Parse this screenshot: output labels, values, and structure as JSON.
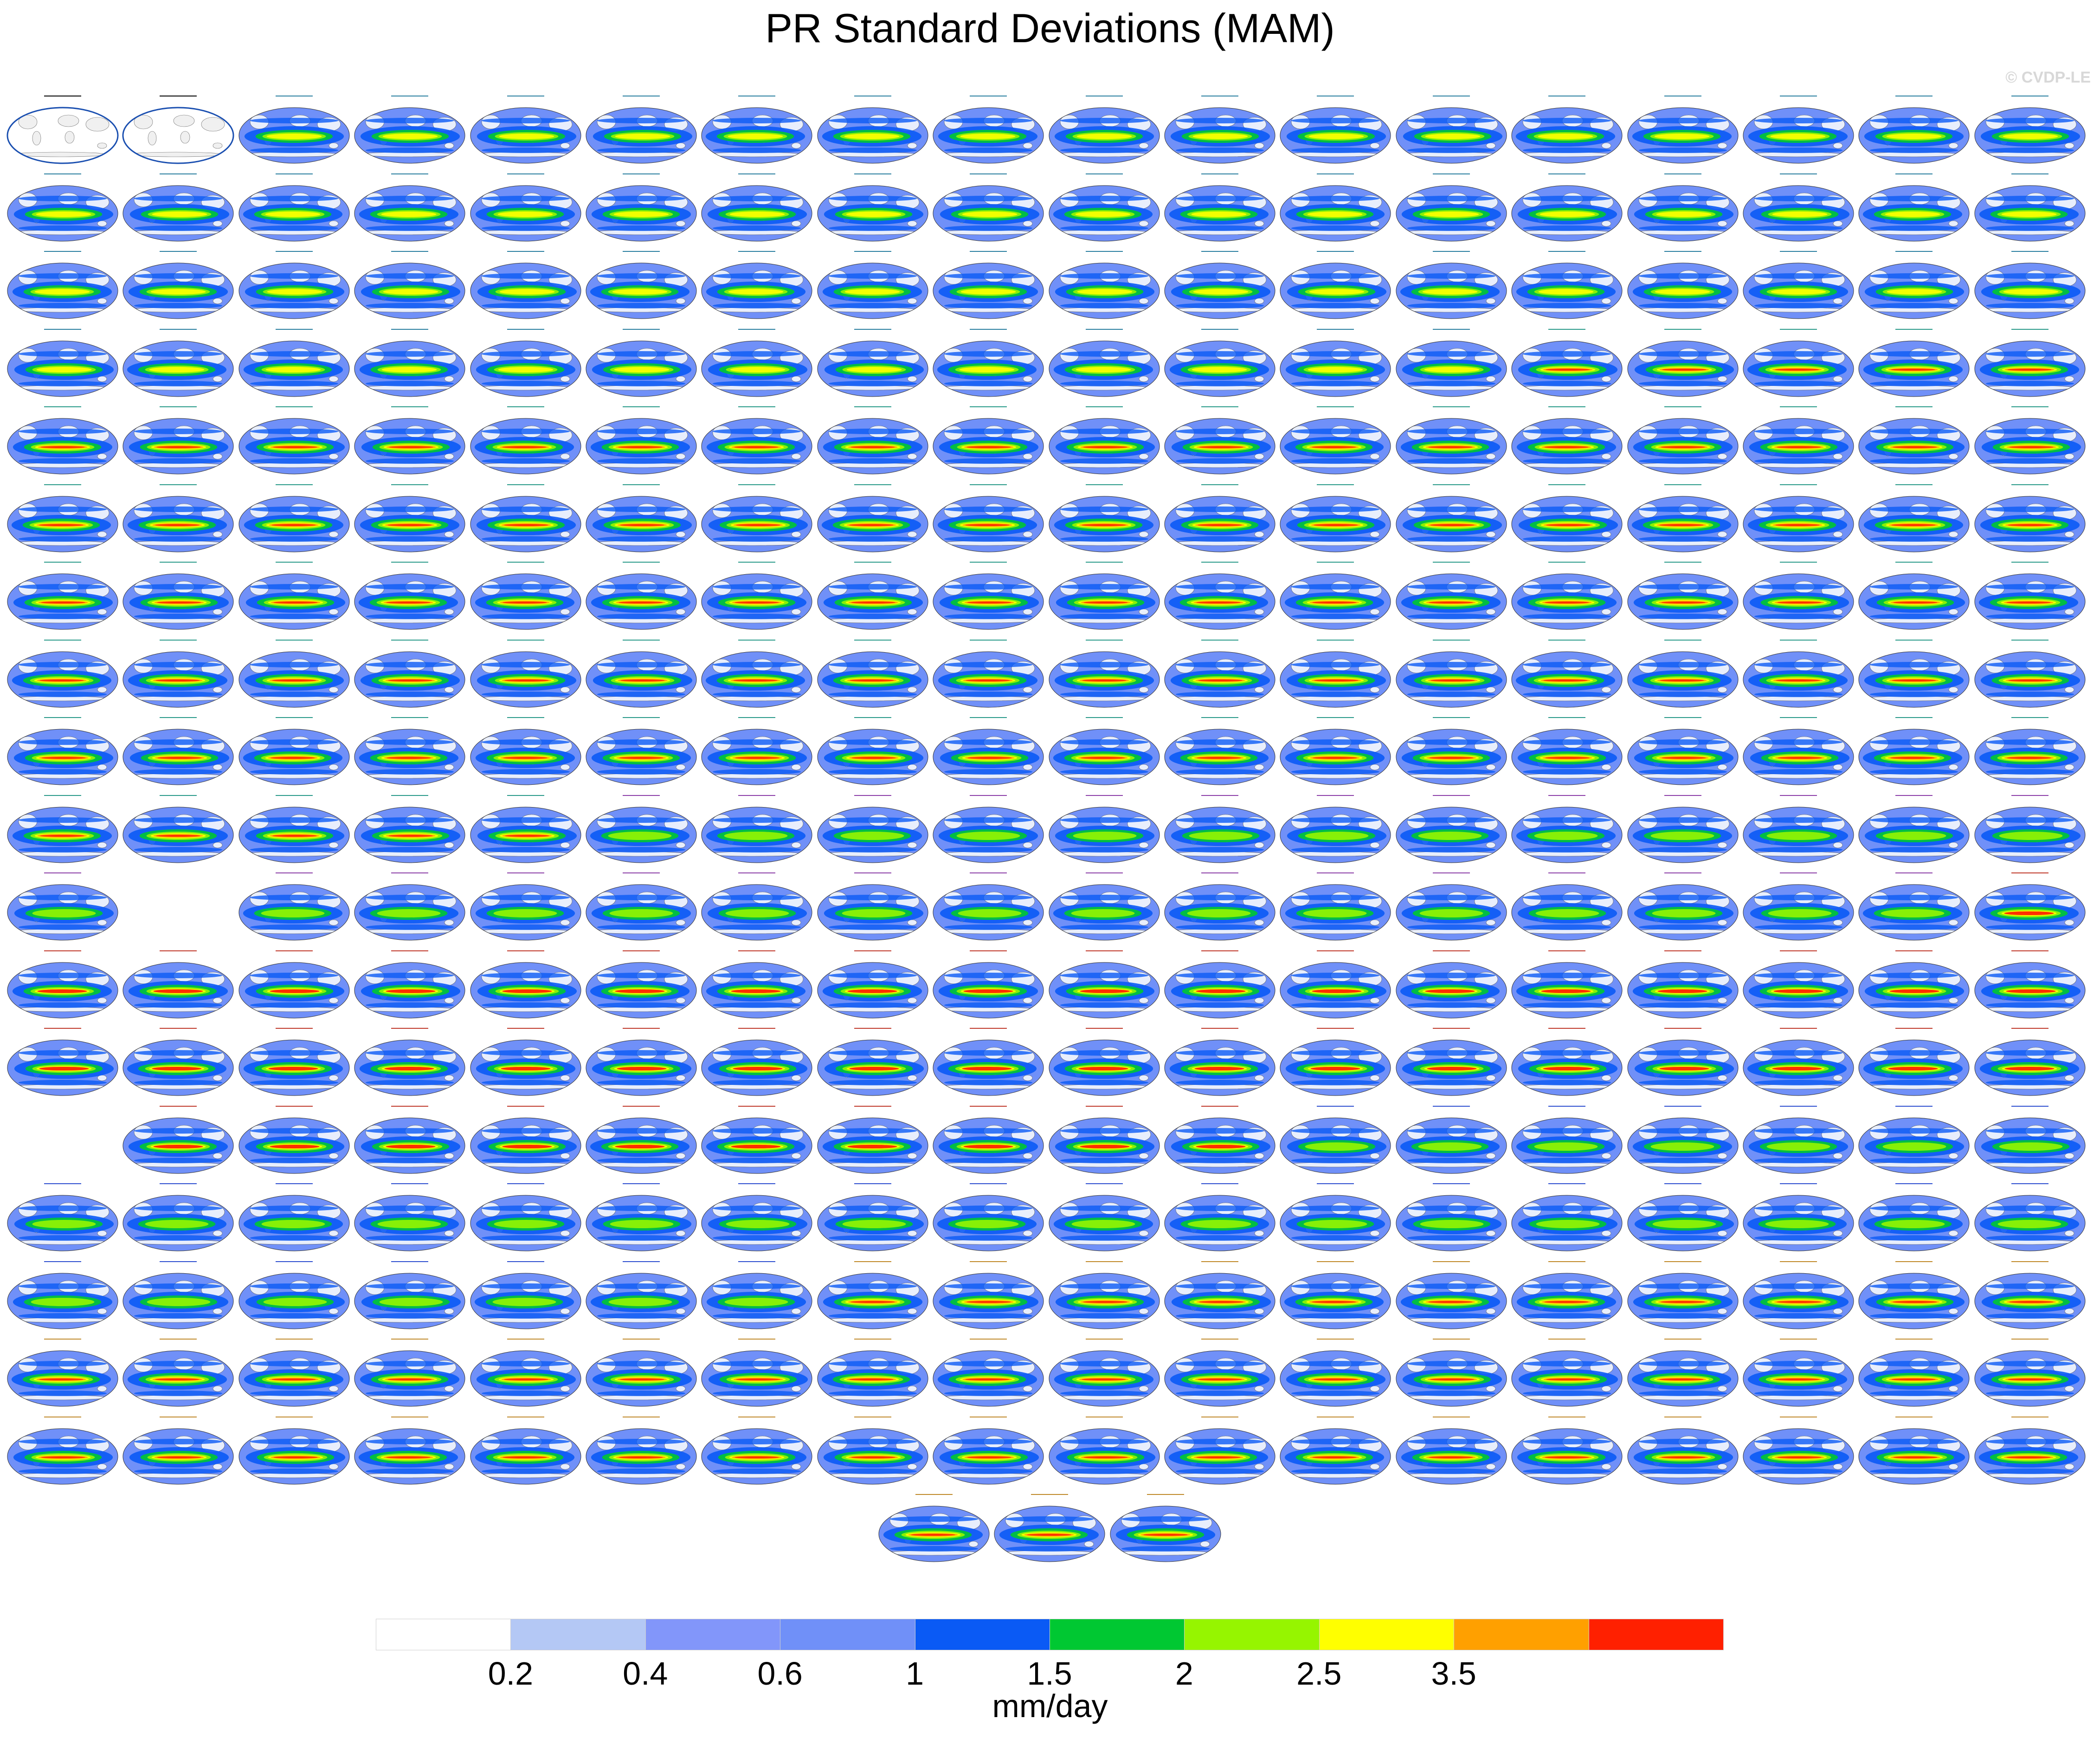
{
  "figure": {
    "title": "PR Standard Deviations (MAM)",
    "credit": "© CVDP-LE",
    "units": "mm/day"
  },
  "colorbar": {
    "colors": [
      "#ffffff",
      "#b4c8f5",
      "#8296fa",
      "#7090f8",
      "#0a5af5",
      "#00c832",
      "#96f500",
      "#ffff00",
      "#ffa000",
      "#ff2000"
    ],
    "labels": [
      "0.2",
      "0.4",
      "0.6",
      "1",
      "1.5",
      "2",
      "2.5",
      "3.5"
    ]
  },
  "panels": {
    "cols": 18,
    "rows": [
      {
        "present": [
          1,
          1,
          1,
          1,
          1,
          1,
          1,
          1,
          1,
          1,
          1,
          1,
          1,
          1,
          1,
          1,
          1,
          1
        ],
        "style": [
          "obs",
          "obs",
          "cesm1",
          "cesm1",
          "cesm1",
          "cesm1",
          "cesm1",
          "cesm1",
          "cesm1",
          "cesm1",
          "cesm1",
          "cesm1",
          "cesm1",
          "cesm1",
          "cesm1",
          "cesm1",
          "cesm1",
          "cesm1"
        ]
      },
      {
        "present": [
          1,
          1,
          1,
          1,
          1,
          1,
          1,
          1,
          1,
          1,
          1,
          1,
          1,
          1,
          1,
          1,
          1,
          1
        ],
        "style": [
          "cesm1",
          "cesm1",
          "cesm1",
          "cesm1",
          "cesm1",
          "cesm1",
          "cesm1",
          "cesm1",
          "cesm1",
          "cesm1",
          "cesm1",
          "cesm1",
          "cesm1",
          "cesm1",
          "cesm1",
          "cesm1",
          "cesm1",
          "cesm1"
        ]
      },
      {
        "present": [
          1,
          1,
          1,
          1,
          1,
          1,
          1,
          1,
          1,
          1,
          1,
          1,
          1,
          1,
          1,
          1,
          1,
          1
        ],
        "style": [
          "cesm1",
          "cesm1",
          "cesm1",
          "cesm1",
          "cesm1",
          "cesm1",
          "cesm1",
          "cesm1",
          "cesm1",
          "cesm1",
          "cesm1",
          "cesm1",
          "cesm1",
          "cesm1",
          "cesm1",
          "cesm1",
          "cesm1",
          "cesm1"
        ]
      },
      {
        "present": [
          1,
          1,
          1,
          1,
          1,
          1,
          1,
          1,
          1,
          1,
          1,
          1,
          1,
          1,
          1,
          1,
          1,
          1
        ],
        "style": [
          "cesm1",
          "cesm1",
          "cesm1",
          "cesm1",
          "cesm1",
          "cesm1",
          "cesm1",
          "cesm1",
          "cesm1",
          "cesm1",
          "cesm1",
          "cesm1",
          "cesm1",
          "lens",
          "lens",
          "lens",
          "lens",
          "lens"
        ]
      },
      {
        "present": [
          1,
          1,
          1,
          1,
          1,
          1,
          1,
          1,
          1,
          1,
          1,
          1,
          1,
          1,
          1,
          1,
          1,
          1
        ],
        "style": [
          "lens",
          "lens",
          "lens",
          "lens",
          "lens",
          "lens",
          "lens",
          "lens",
          "lens",
          "lens",
          "lens",
          "lens",
          "lens",
          "lens",
          "lens",
          "lens",
          "lens",
          "lens"
        ]
      },
      {
        "present": [
          1,
          1,
          1,
          1,
          1,
          1,
          1,
          1,
          1,
          1,
          1,
          1,
          1,
          1,
          1,
          1,
          1,
          1
        ],
        "style": [
          "lens",
          "lens",
          "lens",
          "lens",
          "lens",
          "lens",
          "lens",
          "lens",
          "lens",
          "lens",
          "lens",
          "lens",
          "lens",
          "lens",
          "lens",
          "lens",
          "lens",
          "lens"
        ]
      },
      {
        "present": [
          1,
          1,
          1,
          1,
          1,
          1,
          1,
          1,
          1,
          1,
          1,
          1,
          1,
          1,
          1,
          1,
          1,
          1
        ],
        "style": [
          "lens",
          "lens",
          "lens",
          "lens",
          "lens",
          "lens",
          "lens",
          "lens",
          "lens",
          "lens",
          "lens",
          "lens",
          "lens",
          "lens",
          "lens",
          "lens",
          "lens",
          "lens"
        ]
      },
      {
        "present": [
          1,
          1,
          1,
          1,
          1,
          1,
          1,
          1,
          1,
          1,
          1,
          1,
          1,
          1,
          1,
          1,
          1,
          1
        ],
        "style": [
          "lens",
          "lens",
          "lens",
          "lens",
          "lens",
          "lens",
          "lens",
          "lens",
          "lens",
          "lens",
          "lens",
          "lens",
          "lens",
          "lens",
          "lens",
          "lens",
          "lens",
          "lens"
        ]
      },
      {
        "present": [
          1,
          1,
          1,
          1,
          1,
          1,
          1,
          1,
          1,
          1,
          1,
          1,
          1,
          1,
          1,
          1,
          1,
          1
        ],
        "style": [
          "lens",
          "lens",
          "lens",
          "lens",
          "lens",
          "lens",
          "lens",
          "lens",
          "lens",
          "lens",
          "lens",
          "lens",
          "lens",
          "lens",
          "lens",
          "lens",
          "lens",
          "lens"
        ]
      },
      {
        "present": [
          1,
          1,
          1,
          1,
          1,
          1,
          1,
          1,
          1,
          1,
          1,
          1,
          1,
          1,
          1,
          1,
          1,
          1
        ],
        "style": [
          "lens",
          "lens",
          "lens",
          "lens",
          "lens",
          "csiro",
          "csiro",
          "csiro",
          "csiro",
          "csiro",
          "csiro",
          "csiro",
          "csiro",
          "csiro",
          "csiro",
          "csiro",
          "csiro",
          "csiro"
        ]
      },
      {
        "present": [
          1,
          0,
          1,
          1,
          1,
          1,
          1,
          1,
          1,
          1,
          1,
          1,
          1,
          1,
          1,
          1,
          1,
          1
        ],
        "style": [
          "csiro",
          "none",
          "csiro",
          "csiro",
          "csiro",
          "csiro",
          "csiro",
          "csiro",
          "csiro",
          "csiro",
          "csiro",
          "csiro",
          "csiro",
          "csiro",
          "csiro",
          "csiro",
          "csiro",
          "giss"
        ]
      },
      {
        "present": [
          1,
          1,
          1,
          1,
          1,
          1,
          1,
          1,
          1,
          1,
          1,
          1,
          1,
          1,
          1,
          1,
          1,
          1
        ],
        "style": [
          "giss",
          "giss",
          "giss",
          "giss",
          "giss",
          "giss",
          "giss",
          "giss",
          "giss",
          "giss",
          "giss",
          "giss",
          "giss",
          "giss",
          "giss",
          "giss",
          "giss",
          "giss"
        ]
      },
      {
        "present": [
          1,
          1,
          1,
          1,
          1,
          1,
          1,
          1,
          1,
          1,
          1,
          1,
          1,
          1,
          1,
          1,
          1,
          1
        ],
        "style": [
          "giss",
          "giss",
          "giss",
          "giss",
          "giss",
          "giss",
          "giss",
          "giss",
          "giss",
          "giss",
          "giss",
          "giss",
          "giss",
          "giss",
          "giss",
          "giss",
          "giss",
          "giss"
        ]
      },
      {
        "present": [
          0,
          1,
          1,
          1,
          1,
          1,
          1,
          1,
          1,
          1,
          1,
          1,
          1,
          1,
          1,
          1,
          1,
          1
        ],
        "style": [
          "none",
          "giss",
          "giss",
          "giss",
          "giss",
          "giss",
          "giss",
          "giss",
          "giss",
          "giss",
          "giss",
          "ipsl",
          "ipsl",
          "ipsl",
          "ipsl",
          "ipsl",
          "ipsl",
          "ipsl"
        ]
      },
      {
        "present": [
          1,
          1,
          1,
          1,
          1,
          1,
          1,
          1,
          1,
          1,
          1,
          1,
          1,
          1,
          1,
          1,
          1,
          1
        ],
        "style": [
          "ipsl",
          "ipsl",
          "ipsl",
          "ipsl",
          "ipsl",
          "ipsl",
          "ipsl",
          "ipsl",
          "ipsl",
          "ipsl",
          "ipsl",
          "ipsl",
          "ipsl",
          "ipsl",
          "ipsl",
          "ipsl",
          "ipsl",
          "ipsl"
        ]
      },
      {
        "present": [
          1,
          1,
          1,
          1,
          1,
          1,
          1,
          1,
          1,
          1,
          1,
          1,
          1,
          1,
          1,
          1,
          1,
          1
        ],
        "style": [
          "ipsl",
          "ipsl",
          "ipsl",
          "ipsl",
          "ipsl",
          "ipsl",
          "ipsl",
          "miroc",
          "miroc",
          "miroc",
          "miroc",
          "miroc",
          "miroc",
          "miroc",
          "miroc",
          "miroc",
          "miroc",
          "miroc"
        ]
      },
      {
        "present": [
          1,
          1,
          1,
          1,
          1,
          1,
          1,
          1,
          1,
          1,
          1,
          1,
          1,
          1,
          1,
          1,
          1,
          1
        ],
        "style": [
          "miroc",
          "miroc",
          "miroc",
          "miroc",
          "miroc",
          "miroc",
          "miroc",
          "miroc",
          "miroc",
          "miroc",
          "miroc",
          "miroc",
          "miroc",
          "miroc",
          "miroc",
          "miroc",
          "miroc",
          "miroc"
        ]
      },
      {
        "present": [
          1,
          1,
          1,
          1,
          1,
          1,
          1,
          1,
          1,
          1,
          1,
          1,
          1,
          1,
          1,
          1,
          1,
          1
        ],
        "style": [
          "miroc",
          "miroc",
          "miroc",
          "miroc",
          "miroc",
          "miroc",
          "miroc",
          "miroc",
          "miroc",
          "miroc",
          "miroc",
          "miroc",
          "miroc",
          "miroc",
          "miroc",
          "miroc",
          "miroc",
          "miroc"
        ]
      }
    ],
    "last_row": {
      "count": 3,
      "style": "miroc"
    }
  }
}
